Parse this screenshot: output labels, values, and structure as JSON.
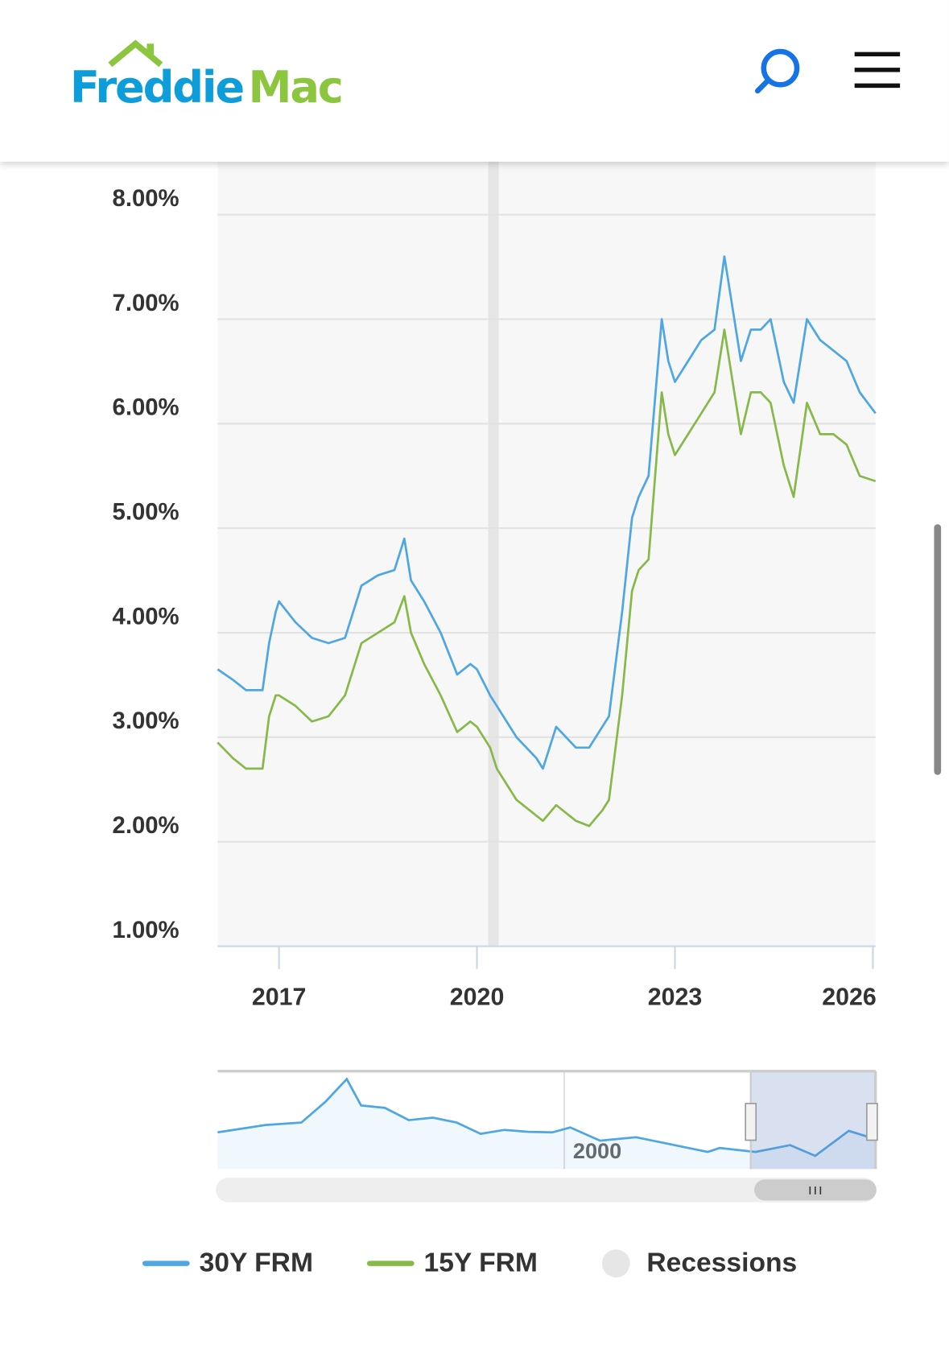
{
  "header": {
    "logo": [
      "Freddie",
      "Mac"
    ]
  },
  "chart_data": {
    "type": "line",
    "x": [
      2016.07,
      2016.3,
      2016.5,
      2016.75,
      2016.85,
      2016.95,
      2017.0,
      2017.25,
      2017.5,
      2017.75,
      2018.0,
      2018.25,
      2018.5,
      2018.75,
      2018.9,
      2019.0,
      2019.2,
      2019.45,
      2019.7,
      2019.9,
      2020.0,
      2020.2,
      2020.3,
      2020.6,
      2020.9,
      2021.0,
      2021.2,
      2021.5,
      2021.7,
      2021.9,
      2022.0,
      2022.2,
      2022.35,
      2022.45,
      2022.6,
      2022.8,
      2022.9,
      2023.0,
      2023.2,
      2023.4,
      2023.6,
      2023.75,
      2023.85,
      2024.0,
      2024.15,
      2024.3,
      2024.45,
      2024.65,
      2024.8,
      2025.0,
      2025.2,
      2025.4,
      2025.6,
      2025.8,
      2026.04
    ],
    "series": [
      {
        "name": "30Y FRM",
        "color": "#4ea6e2",
        "values": [
          3.65,
          3.55,
          3.45,
          3.45,
          3.9,
          4.2,
          4.3,
          4.1,
          3.95,
          3.9,
          3.95,
          4.45,
          4.55,
          4.6,
          4.9,
          4.5,
          4.3,
          4.0,
          3.6,
          3.7,
          3.65,
          3.4,
          3.3,
          3.0,
          2.8,
          2.7,
          3.1,
          2.9,
          2.9,
          3.1,
          3.2,
          4.2,
          5.1,
          5.3,
          5.5,
          7.0,
          6.6,
          6.4,
          6.6,
          6.8,
          6.9,
          7.6,
          7.2,
          6.6,
          6.9,
          6.9,
          7.0,
          6.4,
          6.2,
          7.0,
          6.8,
          6.7,
          6.6,
          6.3,
          6.1
        ]
      },
      {
        "name": "15Y FRM",
        "color": "#86b94a",
        "values": [
          2.95,
          2.8,
          2.7,
          2.7,
          3.2,
          3.4,
          3.4,
          3.3,
          3.15,
          3.2,
          3.4,
          3.9,
          4.0,
          4.1,
          4.35,
          4.0,
          3.7,
          3.4,
          3.05,
          3.15,
          3.1,
          2.9,
          2.7,
          2.4,
          2.25,
          2.2,
          2.35,
          2.2,
          2.15,
          2.3,
          2.4,
          3.4,
          4.4,
          4.6,
          4.7,
          6.3,
          5.9,
          5.7,
          5.9,
          6.1,
          6.3,
          6.9,
          6.5,
          5.9,
          6.3,
          6.3,
          6.2,
          5.6,
          5.3,
          6.2,
          5.9,
          5.9,
          5.8,
          5.5,
          5.45
        ]
      }
    ],
    "recessions": {
      "name": "Recessions",
      "color": "#e6e6e6",
      "bands": [
        [
          2020.17,
          2020.33
        ]
      ]
    },
    "xlim": [
      2016.07,
      2026.04
    ],
    "xticks": [
      2017,
      2020,
      2023,
      2026
    ],
    "ylim": [
      1,
      8.8
    ],
    "yticks": [
      {
        "value": 1,
        "label": "1.00%"
      },
      {
        "value": 2,
        "label": "2.00%"
      },
      {
        "value": 3,
        "label": "3.00%"
      },
      {
        "value": 4,
        "label": "4.00%"
      },
      {
        "value": 5,
        "label": "5.00%"
      },
      {
        "value": 6,
        "label": "6.00%"
      },
      {
        "value": 7,
        "label": "7.00%"
      },
      {
        "value": 8,
        "label": "8.00%"
      }
    ],
    "grid": true,
    "navigator": {
      "x": [
        1971,
        1975,
        1978,
        1980,
        1981.8,
        1983,
        1985,
        1987,
        1989,
        1991,
        1993,
        1995,
        1997,
        1999,
        2000.5,
        2003,
        2006,
        2009,
        2012,
        2013,
        2016,
        2018.9,
        2021,
        2023.8,
        2026.04
      ],
      "values": [
        7.5,
        9,
        9.5,
        13.7,
        18.4,
        13,
        12.5,
        10,
        10.5,
        9.5,
        7.2,
        8,
        7.6,
        7.5,
        8.5,
        5.8,
        6.5,
        5,
        3.5,
        4.3,
        3.5,
        4.9,
        2.7,
        7.8,
        6.1
      ],
      "xlim": [
        1971,
        2026.04
      ],
      "ylim": [
        0,
        20
      ],
      "xticks": [
        2000
      ],
      "selection": [
        2015.6,
        2026.04
      ]
    }
  }
}
